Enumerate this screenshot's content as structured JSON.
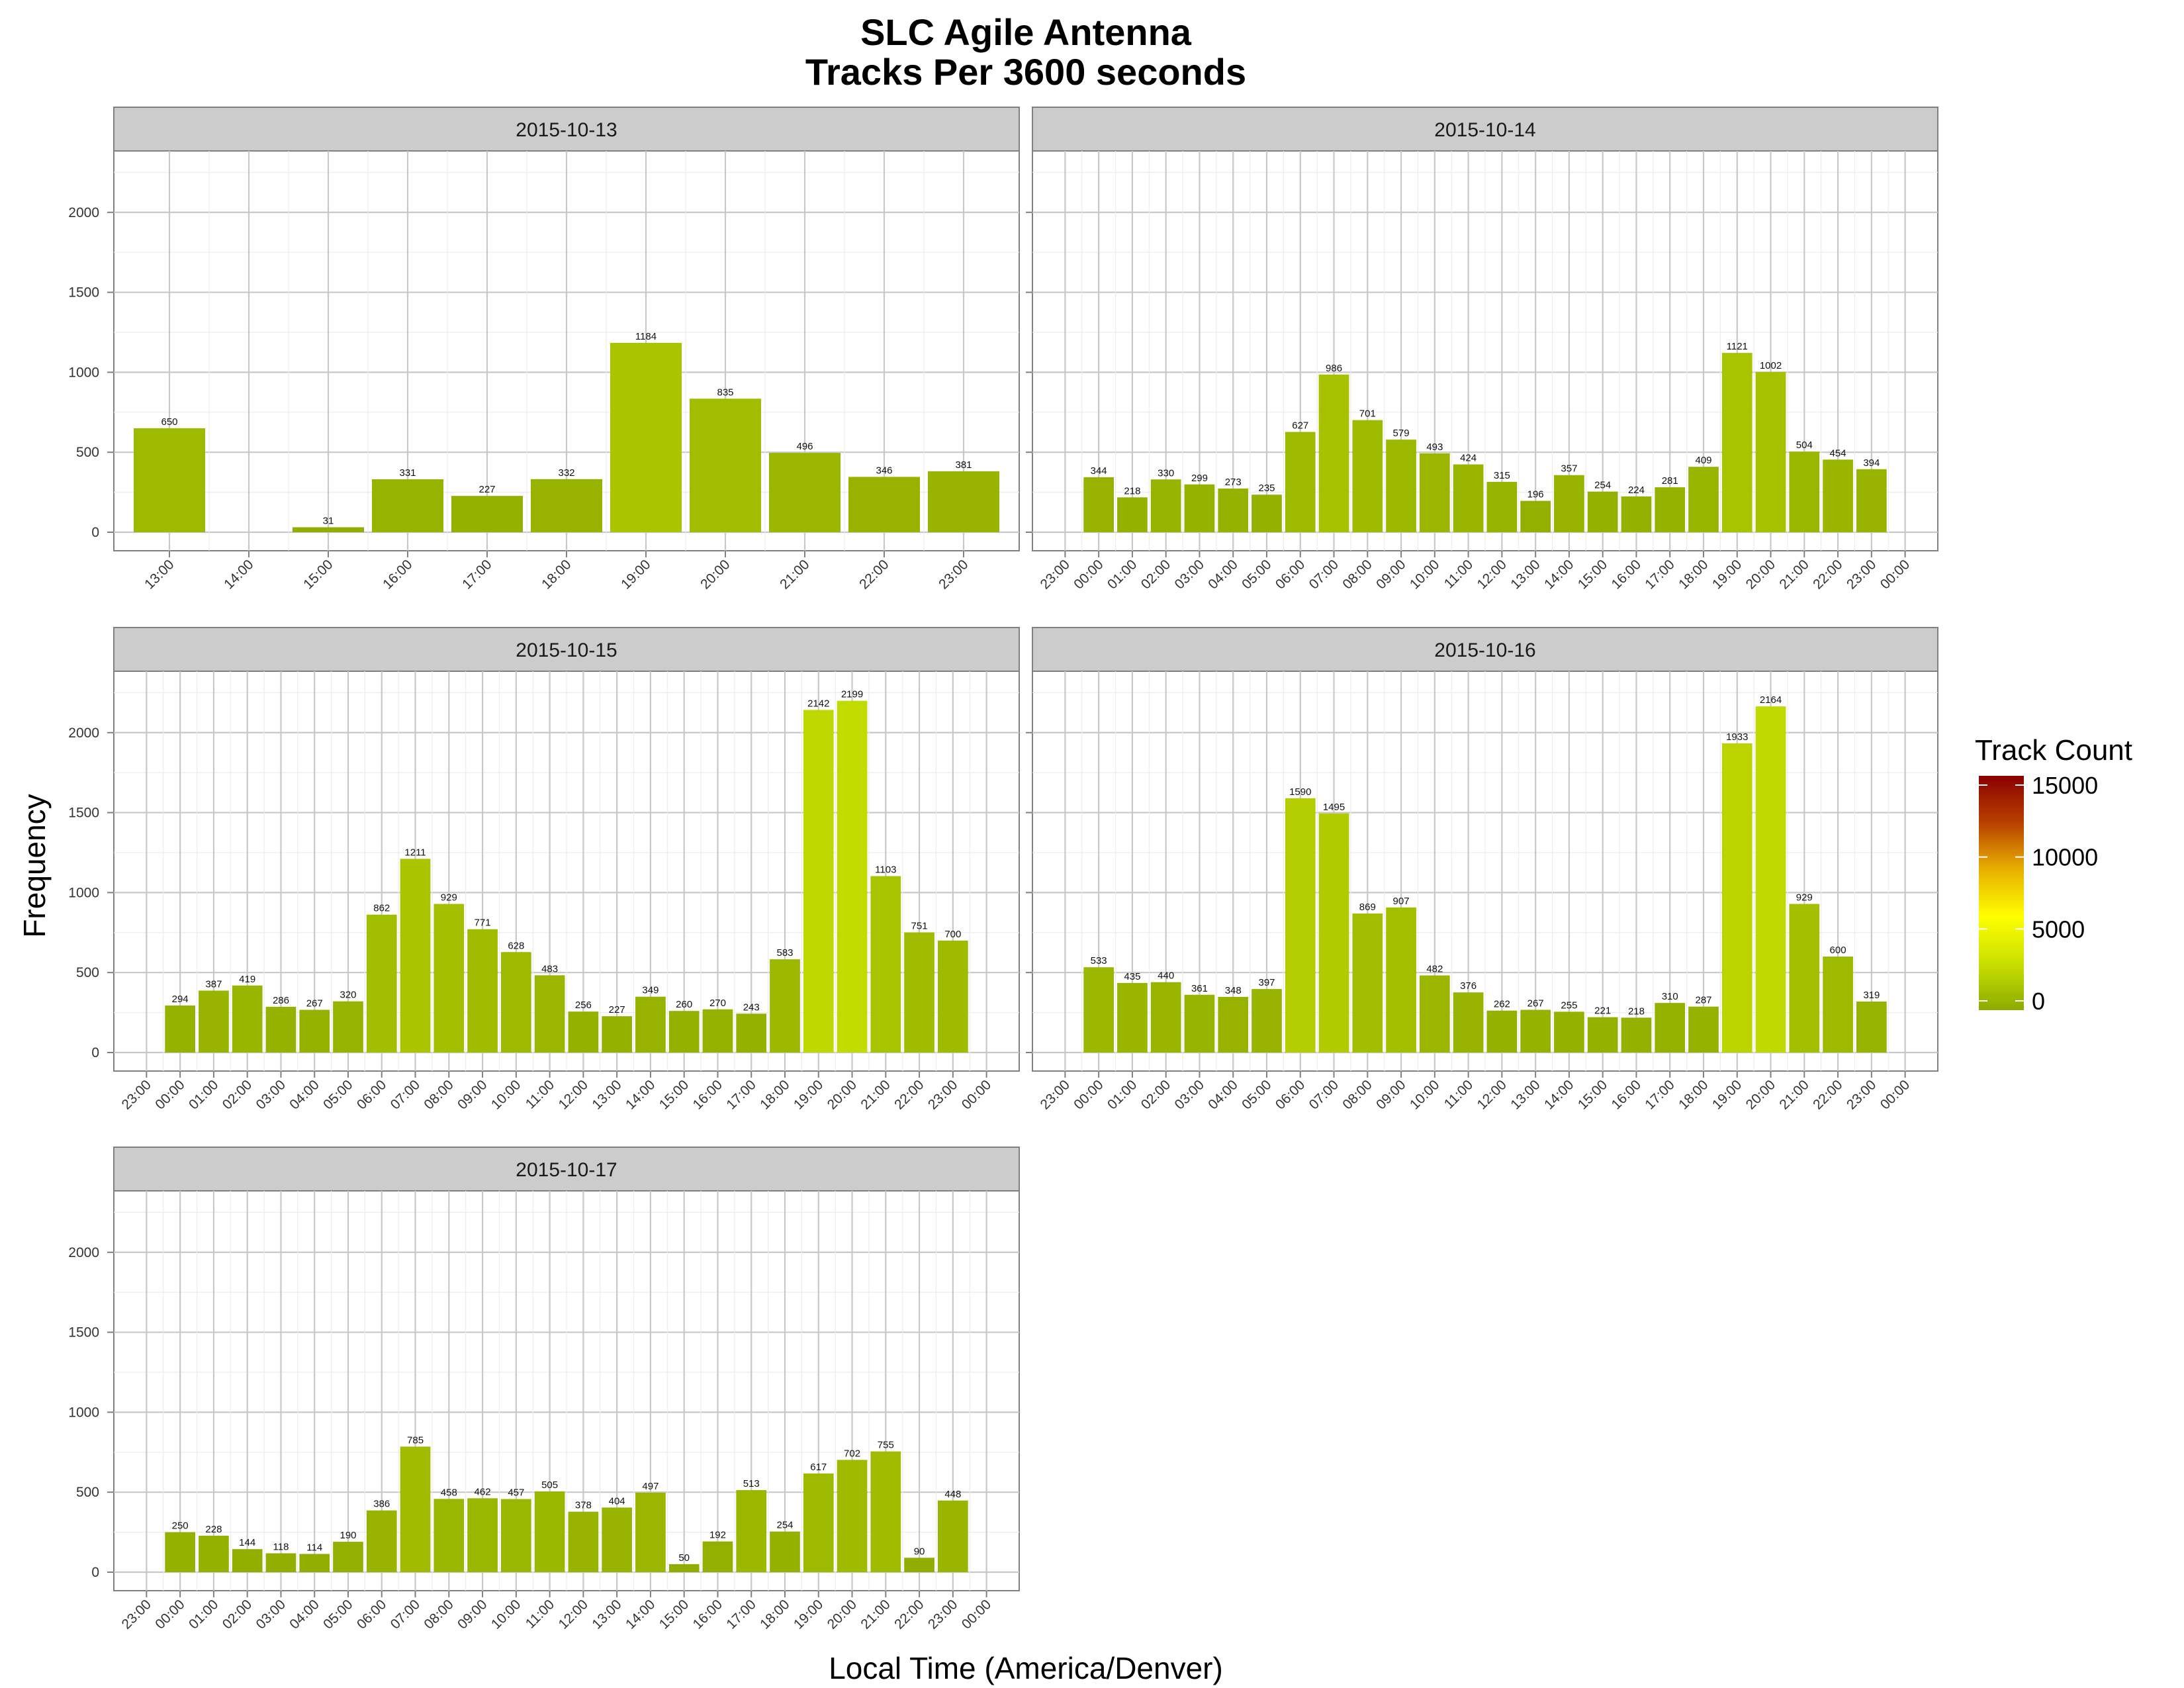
{
  "chart_data": {
    "type": "bar",
    "title": "SLC Agile Antenna",
    "subtitle": "Tracks Per 3600 seconds",
    "xlabel": "Local Time (America/Denver)",
    "ylabel": "Frequency",
    "ylim": [
      0,
      2200
    ],
    "yticks": [
      0,
      500,
      1000,
      1500,
      2000
    ],
    "grid": true,
    "legend": {
      "title": "Track Count",
      "placement": "right",
      "ticks": [
        0,
        5000,
        10000,
        15000
      ],
      "range": [
        0,
        15000
      ],
      "colors": [
        "#8caa00",
        "#c9e000",
        "#ffff00",
        "#e8b000",
        "#b84000",
        "#8b0000"
      ]
    },
    "panels": [
      {
        "label": "2015-10-13",
        "xticks": [
          "13:00",
          "14:00",
          "15:00",
          "16:00",
          "17:00",
          "18:00",
          "19:00",
          "20:00",
          "21:00",
          "22:00",
          "23:00"
        ],
        "bars": [
          {
            "hour": "13:00",
            "value": 650
          },
          {
            "hour": "15:00",
            "value": 31
          },
          {
            "hour": "16:00",
            "value": 331
          },
          {
            "hour": "17:00",
            "value": 227
          },
          {
            "hour": "18:00",
            "value": 332
          },
          {
            "hour": "19:00",
            "value": 1184
          },
          {
            "hour": "20:00",
            "value": 835
          },
          {
            "hour": "21:00",
            "value": 496
          },
          {
            "hour": "22:00",
            "value": 346
          },
          {
            "hour": "23:00",
            "value": 381
          }
        ]
      },
      {
        "label": "2015-10-14",
        "xticks": [
          "23:00",
          "00:00",
          "01:00",
          "02:00",
          "03:00",
          "04:00",
          "05:00",
          "06:00",
          "07:00",
          "08:00",
          "09:00",
          "10:00",
          "11:00",
          "12:00",
          "13:00",
          "14:00",
          "15:00",
          "16:00",
          "17:00",
          "18:00",
          "19:00",
          "20:00",
          "21:00",
          "22:00",
          "23:00",
          "00:00"
        ],
        "values": [
          344,
          218,
          330,
          299,
          273,
          235,
          627,
          986,
          701,
          579,
          493,
          424,
          315,
          196,
          357,
          254,
          224,
          281,
          409,
          1121,
          1002,
          504,
          454,
          394
        ]
      },
      {
        "label": "2015-10-15",
        "xticks": [
          "23:00",
          "00:00",
          "01:00",
          "02:00",
          "03:00",
          "04:00",
          "05:00",
          "06:00",
          "07:00",
          "08:00",
          "09:00",
          "10:00",
          "11:00",
          "12:00",
          "13:00",
          "14:00",
          "15:00",
          "16:00",
          "17:00",
          "18:00",
          "19:00",
          "20:00",
          "21:00",
          "22:00",
          "23:00",
          "00:00"
        ],
        "values": [
          294,
          387,
          419,
          286,
          267,
          320,
          862,
          1211,
          929,
          771,
          628,
          483,
          256,
          227,
          349,
          260,
          270,
          243,
          583,
          2142,
          2199,
          1103,
          751,
          700
        ]
      },
      {
        "label": "2015-10-16",
        "xticks": [
          "23:00",
          "00:00",
          "01:00",
          "02:00",
          "03:00",
          "04:00",
          "05:00",
          "06:00",
          "07:00",
          "08:00",
          "09:00",
          "10:00",
          "11:00",
          "12:00",
          "13:00",
          "14:00",
          "15:00",
          "16:00",
          "17:00",
          "18:00",
          "19:00",
          "20:00",
          "21:00",
          "22:00",
          "23:00",
          "00:00"
        ],
        "values": [
          533,
          435,
          440,
          361,
          348,
          397,
          1590,
          1495,
          869,
          907,
          482,
          376,
          262,
          267,
          255,
          221,
          218,
          310,
          287,
          1933,
          2164,
          929,
          600,
          319
        ]
      },
      {
        "label": "2015-10-17",
        "xticks": [
          "23:00",
          "00:00",
          "01:00",
          "02:00",
          "03:00",
          "04:00",
          "05:00",
          "06:00",
          "07:00",
          "08:00",
          "09:00",
          "10:00",
          "11:00",
          "12:00",
          "13:00",
          "14:00",
          "15:00",
          "16:00",
          "17:00",
          "18:00",
          "19:00",
          "20:00",
          "21:00",
          "22:00",
          "23:00",
          "00:00"
        ],
        "values": [
          250,
          228,
          144,
          118,
          114,
          190,
          386,
          785,
          458,
          462,
          457,
          505,
          378,
          404,
          497,
          50,
          192,
          513,
          254,
          617,
          702,
          755,
          90,
          448
        ]
      }
    ]
  }
}
